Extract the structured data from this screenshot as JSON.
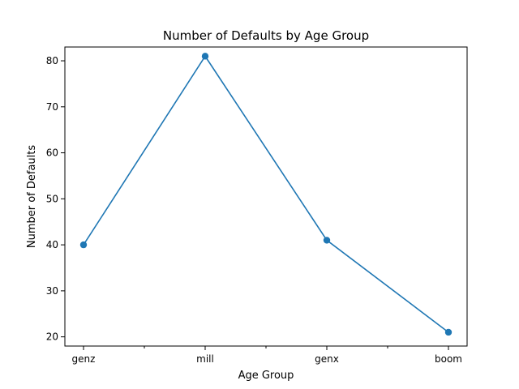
{
  "chart_data": {
    "type": "line",
    "title": "Number of Defaults by Age Group",
    "xlabel": "Age Group",
    "ylabel": "Number of Defaults",
    "categories": [
      "genz",
      "mill",
      "genx",
      "boom"
    ],
    "series": [
      {
        "values": [
          40,
          81,
          41,
          21
        ],
        "color": "#1f77b4",
        "marker": "circle"
      }
    ],
    "ylim": [
      18,
      83
    ],
    "yticks": [
      20,
      30,
      40,
      50,
      60,
      70,
      80
    ],
    "minor_x_ticks_between_categories": true,
    "grid": false,
    "legend": "none"
  }
}
